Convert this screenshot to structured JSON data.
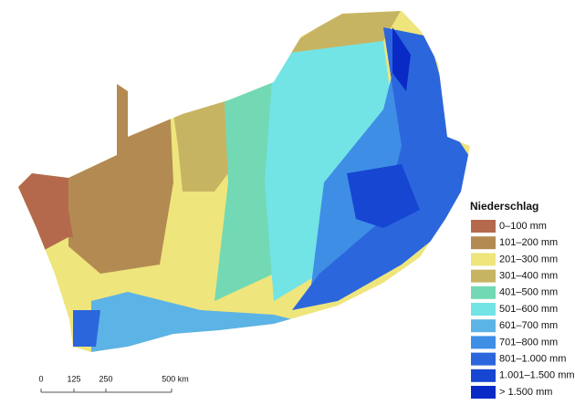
{
  "legend": {
    "title": "Niederschlag",
    "items": [
      {
        "label": "0–100 mm",
        "color": "#b5694c"
      },
      {
        "label": "101–200 mm",
        "color": "#b38b52"
      },
      {
        "label": "201–300 mm",
        "color": "#eee57c"
      },
      {
        "label": "301–400 mm",
        "color": "#c7b463"
      },
      {
        "label": "401–500 mm",
        "color": "#72d9b4"
      },
      {
        "label": "501–600 mm",
        "color": "#72e4e6"
      },
      {
        "label": "601–700 mm",
        "color": "#5cb3e6"
      },
      {
        "label": "701–800 mm",
        "color": "#3f8ee6"
      },
      {
        "label": "801–1.000 mm",
        "color": "#2b66dc"
      },
      {
        "label": "1.001–1.500 mm",
        "color": "#1646d2"
      },
      {
        "label": "> 1.500 mm",
        "color": "#0a2ac6"
      }
    ]
  },
  "scale_bar": {
    "labels": [
      "0",
      "125",
      "250",
      "500 km"
    ]
  }
}
